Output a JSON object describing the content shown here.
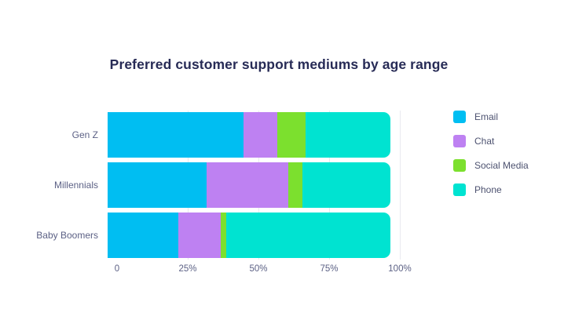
{
  "chart_data": {
    "type": "bar",
    "orientation": "horizontal",
    "stacked": true,
    "title": "Preferred customer support mediums by age range",
    "categories": [
      "Gen Z",
      "Millennials",
      "Baby Boomers"
    ],
    "series": [
      {
        "name": "Email",
        "color": "#00bef2",
        "values": [
          48,
          35,
          25
        ]
      },
      {
        "name": "Chat",
        "color": "#be81f2",
        "values": [
          12,
          29,
          15
        ]
      },
      {
        "name": "Social Media",
        "color": "#7ce02e",
        "values": [
          10,
          5,
          2
        ]
      },
      {
        "name": "Phone",
        "color": "#00e3d1",
        "values": [
          30,
          31,
          58
        ]
      }
    ],
    "xlabel": "",
    "ylabel": "",
    "xlim": [
      0,
      100
    ],
    "x_ticks": [
      {
        "label": "0",
        "value": 0
      },
      {
        "label": "25%",
        "value": 25
      },
      {
        "label": "50%",
        "value": 50
      },
      {
        "label": "75%",
        "value": 75
      },
      {
        "label": "100%",
        "value": 100
      }
    ],
    "gridline_values": [
      25,
      50,
      75,
      100
    ],
    "legend_position": "right",
    "grid": "vertical-light"
  },
  "colors": {
    "title_text": "#272b56",
    "axis_text": "#5c6185",
    "legend_text": "#4d5270",
    "gridline": "#e9eaf0",
    "background": "#ffffff"
  }
}
